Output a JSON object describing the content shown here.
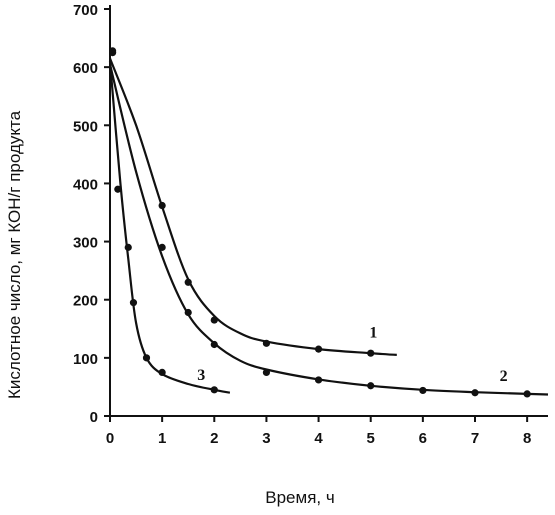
{
  "chart_data": {
    "type": "line",
    "xlabel": "Время, ч",
    "ylabel": "Кислотное число, мг КОН/г продукта",
    "xlim": [
      0,
      8.4
    ],
    "ylim": [
      0,
      700
    ],
    "xticks": [
      0,
      1,
      2,
      3,
      4,
      5,
      6,
      7,
      8
    ],
    "yticks": [
      0,
      100,
      200,
      300,
      400,
      500,
      600,
      700
    ],
    "grid": false,
    "series": [
      {
        "name": "1",
        "points": [
          [
            0.05,
            625
          ],
          [
            1.0,
            362
          ],
          [
            1.5,
            230
          ],
          [
            2.0,
            165
          ],
          [
            3.0,
            125
          ],
          [
            4.0,
            115
          ],
          [
            5.0,
            108
          ]
        ],
        "curve": [
          [
            0,
            615
          ],
          [
            0.5,
            500
          ],
          [
            1.0,
            360
          ],
          [
            1.5,
            235
          ],
          [
            2.0,
            172
          ],
          [
            2.5,
            142
          ],
          [
            3.0,
            128
          ],
          [
            4.0,
            115
          ],
          [
            5.0,
            108
          ],
          [
            5.5,
            105
          ]
        ]
      },
      {
        "name": "2",
        "points": [
          [
            0.05,
            628
          ],
          [
            1.0,
            290
          ],
          [
            1.5,
            178
          ],
          [
            2.0,
            123
          ],
          [
            3.0,
            75
          ],
          [
            4.0,
            62
          ],
          [
            5.0,
            52
          ],
          [
            6.0,
            44
          ],
          [
            7.0,
            40
          ],
          [
            8.0,
            38
          ]
        ],
        "curve": [
          [
            0,
            605
          ],
          [
            0.5,
            420
          ],
          [
            1.0,
            275
          ],
          [
            1.5,
            175
          ],
          [
            2.0,
            125
          ],
          [
            2.5,
            95
          ],
          [
            3.0,
            80
          ],
          [
            4.0,
            63
          ],
          [
            5.0,
            52
          ],
          [
            6.0,
            45
          ],
          [
            7.0,
            41
          ],
          [
            8.0,
            38
          ],
          [
            8.4,
            37
          ]
        ]
      },
      {
        "name": "3",
        "points": [
          [
            0.15,
            390
          ],
          [
            0.35,
            290
          ],
          [
            0.45,
            195
          ],
          [
            0.7,
            100
          ],
          [
            1.0,
            75
          ],
          [
            2.0,
            45
          ]
        ],
        "curve": [
          [
            0,
            610
          ],
          [
            0.2,
            400
          ],
          [
            0.35,
            270
          ],
          [
            0.5,
            160
          ],
          [
            0.7,
            100
          ],
          [
            1.0,
            72
          ],
          [
            1.5,
            55
          ],
          [
            2.0,
            45
          ],
          [
            2.3,
            40
          ]
        ]
      }
    ],
    "curve_labels": [
      {
        "text": "1",
        "x": 5.05,
        "y": 135
      },
      {
        "text": "2",
        "x": 7.55,
        "y": 60
      },
      {
        "text": "3",
        "x": 1.75,
        "y": 62
      }
    ]
  }
}
